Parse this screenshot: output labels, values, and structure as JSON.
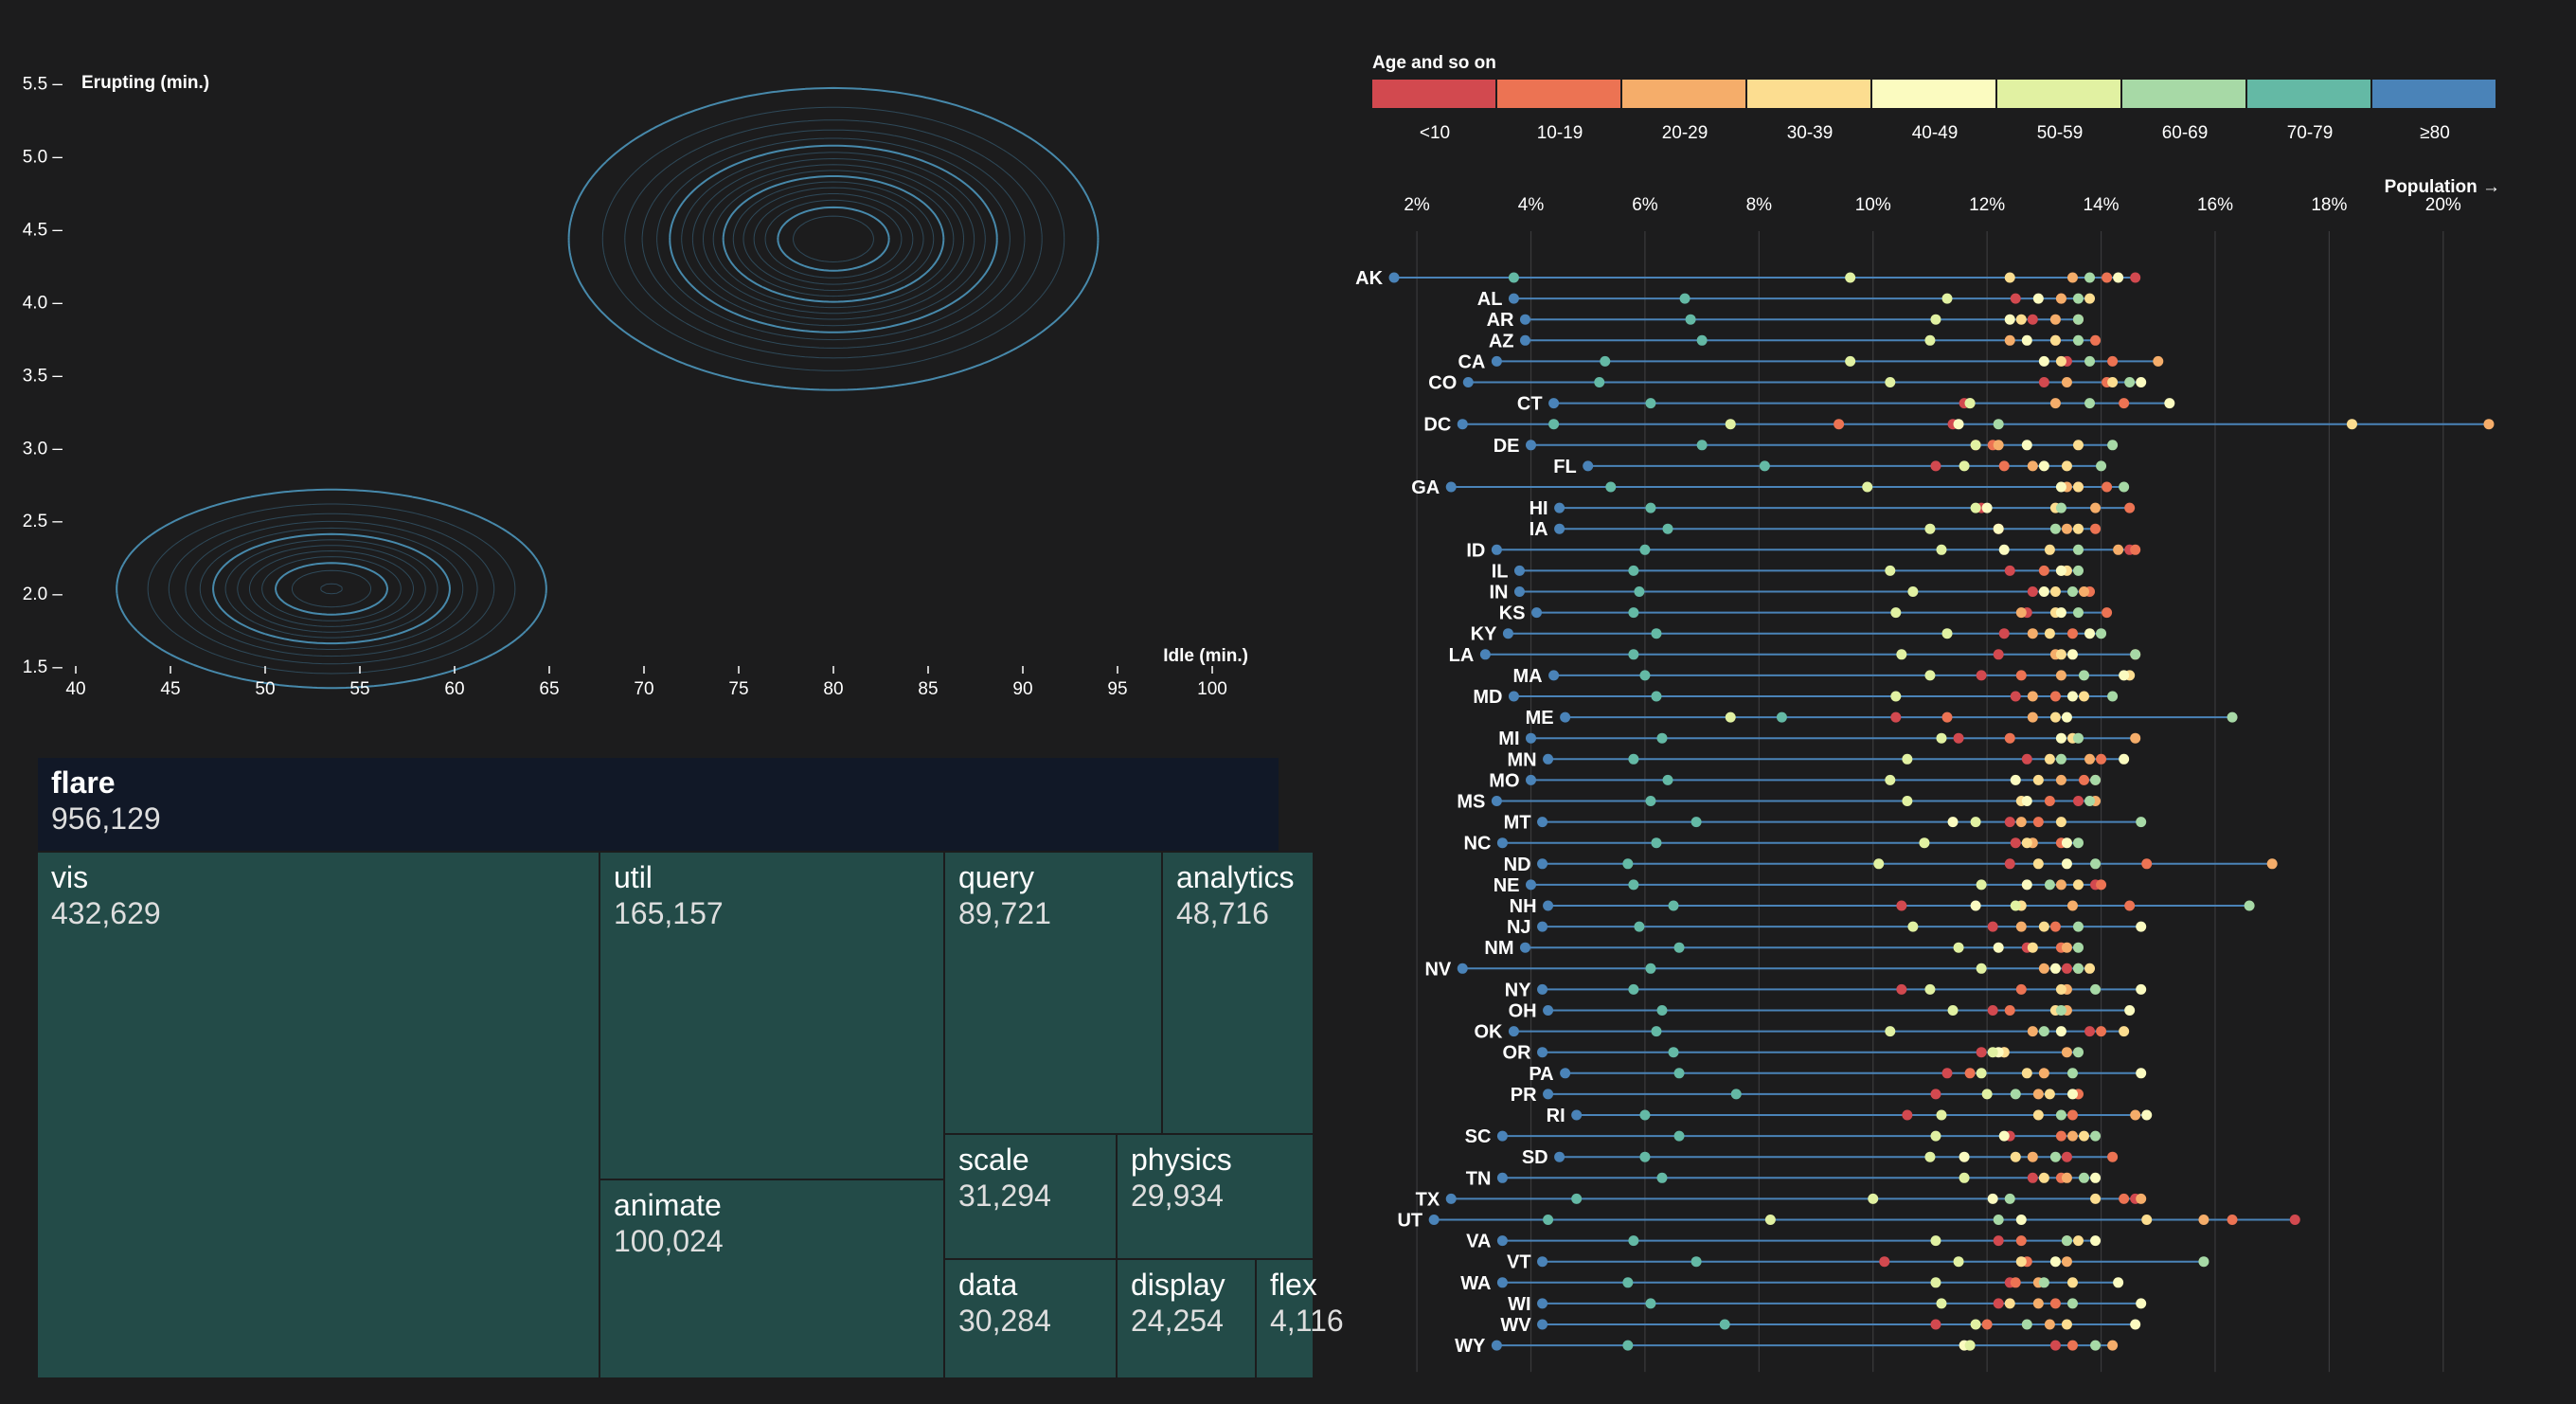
{
  "contour": {
    "xlabel": "Idle (min.)",
    "ylabel": "Erupting (min.)",
    "xticks": [
      40,
      45,
      50,
      55,
      60,
      65,
      70,
      75,
      80,
      85,
      90,
      95,
      100
    ],
    "yticks": [
      1.5,
      2.0,
      2.5,
      3.0,
      3.5,
      4.0,
      4.5,
      5.0,
      5.5
    ],
    "xdomain": [
      40,
      101
    ],
    "ydomain": [
      1.5,
      5.55
    ],
    "stroke": "#4a8fb3"
  },
  "treemap": {
    "root": {
      "name": "flare",
      "value": "956,129"
    },
    "nodes": [
      {
        "name": "vis",
        "value": "432,629"
      },
      {
        "name": "util",
        "value": "165,157"
      },
      {
        "name": "animate",
        "value": "100,024"
      },
      {
        "name": "query",
        "value": "89,721"
      },
      {
        "name": "analytics",
        "value": "48,716"
      },
      {
        "name": "scale",
        "value": "31,294"
      },
      {
        "name": "physics",
        "value": "29,934"
      },
      {
        "name": "data",
        "value": "30,284"
      },
      {
        "name": "display",
        "value": "24,254"
      },
      {
        "name": "flex",
        "value": "4,116"
      }
    ],
    "colors": {
      "root": "#111827",
      "leaf": "#234b48"
    }
  },
  "chart_data": {
    "type": "scatter",
    "title": "Age and so on",
    "xlabel": "Population →",
    "xlim": [
      1.5,
      21
    ],
    "xticks": [
      "2%",
      "4%",
      "6%",
      "8%",
      "10%",
      "12%",
      "14%",
      "16%",
      "18%",
      "20%"
    ],
    "legend": {
      "title": "Age and so on",
      "placement": "top",
      "categories": [
        "<10",
        "10-19",
        "20-29",
        "30-39",
        "40-49",
        "50-59",
        "60-69",
        "70-79",
        "≥80"
      ],
      "colors": [
        "#d2494f",
        "#ec7353",
        "#f5ad6a",
        "#fcdd90",
        "#fbfbc0",
        "#e1f1a2",
        "#a7d9a6",
        "#64b9a5",
        "#4a83b8"
      ]
    },
    "line_color": "#4a83b8",
    "rows": [
      {
        "state": "AK",
        "values": [
          14.6,
          14.1,
          13.5,
          12.4,
          14.3,
          9.6,
          13.8,
          3.7,
          1.6
        ]
      },
      {
        "state": "AL",
        "values": [
          12.5,
          13.3,
          13.3,
          13.8,
          12.9,
          11.3,
          13.6,
          6.7,
          3.7
        ]
      },
      {
        "state": "AR",
        "values": [
          12.8,
          13.6,
          13.2,
          12.6,
          12.4,
          11.1,
          13.6,
          6.8,
          3.9
        ]
      },
      {
        "state": "AZ",
        "values": [
          13.2,
          13.9,
          12.4,
          13.2,
          12.7,
          11.0,
          13.6,
          7.0,
          3.9
        ]
      },
      {
        "state": "CA",
        "values": [
          13.4,
          14.2,
          15.0,
          13.3,
          13.0,
          9.6,
          13.8,
          5.3,
          3.4
        ]
      },
      {
        "state": "CO",
        "values": [
          13.0,
          14.1,
          13.4,
          14.2,
          14.7,
          10.3,
          14.5,
          5.2,
          2.9
        ]
      },
      {
        "state": "CT",
        "values": [
          11.6,
          14.4,
          13.2,
          11.7,
          15.2,
          11.7,
          13.8,
          6.1,
          4.4
        ]
      },
      {
        "state": "DC",
        "values": [
          11.4,
          9.4,
          20.8,
          18.4,
          11.5,
          7.5,
          12.2,
          4.4,
          2.8
        ]
      },
      {
        "state": "DE",
        "values": [
          11.8,
          12.1,
          12.2,
          13.6,
          12.7,
          11.8,
          14.2,
          7.0,
          4.0
        ]
      },
      {
        "state": "FL",
        "values": [
          11.1,
          12.3,
          12.8,
          13.4,
          13.0,
          11.6,
          14.0,
          8.1,
          5.0
        ]
      },
      {
        "state": "GA",
        "values": [
          13.6,
          14.1,
          13.4,
          13.6,
          13.3,
          9.9,
          14.4,
          5.4,
          2.6
        ]
      },
      {
        "state": "HI",
        "values": [
          11.9,
          14.5,
          13.9,
          13.2,
          12.0,
          11.8,
          13.3,
          6.1,
          4.5
        ]
      },
      {
        "state": "IA",
        "values": [
          12.2,
          13.9,
          13.4,
          13.6,
          12.2,
          11.0,
          13.2,
          6.4,
          4.5
        ]
      },
      {
        "state": "ID",
        "values": [
          14.5,
          14.6,
          14.3,
          13.1,
          12.3,
          11.2,
          13.6,
          6.0,
          3.4
        ]
      },
      {
        "state": "IL",
        "values": [
          12.4,
          13.0,
          13.3,
          13.4,
          13.3,
          10.3,
          13.6,
          5.8,
          3.8
        ]
      },
      {
        "state": "IN",
        "values": [
          12.8,
          13.8,
          13.7,
          13.2,
          13.0,
          10.7,
          13.5,
          5.9,
          3.8
        ]
      },
      {
        "state": "KS",
        "values": [
          12.7,
          14.1,
          12.6,
          13.2,
          13.3,
          10.4,
          13.6,
          5.8,
          4.1
        ]
      },
      {
        "state": "KY",
        "values": [
          12.3,
          13.5,
          12.8,
          13.1,
          13.8,
          11.3,
          14.0,
          6.2,
          3.6
        ]
      },
      {
        "state": "LA",
        "values": [
          12.2,
          14.6,
          13.2,
          13.3,
          13.5,
          10.5,
          14.6,
          5.8,
          3.2
        ]
      },
      {
        "state": "MA",
        "values": [
          11.9,
          12.6,
          13.3,
          14.5,
          14.4,
          11.0,
          13.7,
          6.0,
          4.4
        ]
      },
      {
        "state": "MD",
        "values": [
          12.5,
          13.2,
          12.8,
          13.7,
          13.5,
          10.4,
          14.2,
          6.2,
          3.7
        ]
      },
      {
        "state": "ME",
        "values": [
          10.4,
          11.3,
          12.8,
          13.2,
          13.4,
          7.5,
          16.3,
          8.4,
          4.6
        ]
      },
      {
        "state": "MI",
        "values": [
          11.5,
          12.4,
          14.6,
          13.5,
          13.3,
          11.2,
          13.6,
          6.3,
          4.0
        ]
      },
      {
        "state": "MN",
        "values": [
          12.7,
          14.0,
          13.8,
          13.1,
          14.4,
          10.6,
          13.3,
          5.8,
          4.3
        ]
      },
      {
        "state": "MO",
        "values": [
          13.9,
          13.7,
          13.3,
          12.9,
          12.5,
          10.3,
          13.9,
          6.4,
          4.0
        ]
      },
      {
        "state": "MS",
        "values": [
          13.6,
          13.1,
          13.9,
          12.6,
          12.7,
          10.6,
          13.8,
          6.1,
          3.4
        ]
      },
      {
        "state": "MT",
        "values": [
          12.4,
          12.9,
          12.6,
          13.3,
          11.4,
          11.8,
          14.7,
          6.9,
          4.2
        ]
      },
      {
        "state": "NC",
        "values": [
          12.5,
          13.3,
          12.8,
          12.7,
          13.4,
          10.9,
          13.6,
          6.2,
          3.5
        ]
      },
      {
        "state": "ND",
        "values": [
          12.4,
          14.8,
          17.0,
          12.9,
          13.4,
          10.1,
          13.9,
          5.7,
          4.2
        ]
      },
      {
        "state": "NE",
        "values": [
          13.9,
          14.0,
          13.3,
          13.6,
          12.7,
          11.9,
          13.1,
          5.8,
          4.0
        ]
      },
      {
        "state": "NH",
        "values": [
          10.5,
          14.5,
          13.5,
          12.6,
          11.8,
          12.5,
          16.6,
          6.5,
          4.3
        ]
      },
      {
        "state": "NJ",
        "values": [
          12.1,
          13.2,
          12.6,
          13.0,
          14.7,
          10.7,
          13.6,
          5.9,
          4.2
        ]
      },
      {
        "state": "NM",
        "values": [
          12.7,
          13.3,
          13.4,
          12.8,
          12.2,
          11.5,
          13.6,
          6.6,
          3.9
        ]
      },
      {
        "state": "NV",
        "values": [
          13.4,
          13.6,
          13.0,
          13.8,
          13.2,
          11.9,
          13.6,
          6.1,
          2.8
        ]
      },
      {
        "state": "NY",
        "values": [
          10.5,
          12.6,
          13.4,
          13.3,
          14.7,
          11.0,
          13.9,
          5.8,
          4.2
        ]
      },
      {
        "state": "OH",
        "values": [
          12.1,
          12.4,
          13.4,
          13.2,
          14.5,
          11.4,
          13.3,
          6.3,
          4.3
        ]
      },
      {
        "state": "OK",
        "values": [
          13.8,
          14.0,
          12.8,
          14.4,
          13.3,
          10.3,
          13.0,
          6.2,
          3.7
        ]
      },
      {
        "state": "OR",
        "values": [
          11.9,
          12.3,
          13.4,
          12.3,
          12.2,
          12.1,
          13.6,
          6.5,
          4.2
        ]
      },
      {
        "state": "PA",
        "values": [
          11.3,
          11.7,
          13.0,
          12.7,
          14.7,
          11.9,
          13.5,
          6.6,
          4.6
        ]
      },
      {
        "state": "PR",
        "values": [
          11.1,
          13.6,
          12.9,
          13.1,
          13.5,
          12.0,
          12.5,
          7.6,
          4.3
        ]
      },
      {
        "state": "RI",
        "values": [
          10.6,
          13.5,
          14.6,
          12.9,
          14.8,
          11.2,
          13.3,
          6.0,
          4.8
        ]
      },
      {
        "state": "SC",
        "values": [
          12.4,
          13.3,
          13.5,
          13.7,
          12.3,
          11.1,
          13.9,
          6.6,
          3.5
        ]
      },
      {
        "state": "SD",
        "values": [
          13.4,
          14.2,
          12.8,
          12.5,
          11.6,
          11.0,
          13.2,
          6.0,
          4.5
        ]
      },
      {
        "state": "TN",
        "values": [
          12.8,
          13.3,
          13.4,
          13.0,
          13.9,
          11.6,
          13.7,
          6.3,
          3.5
        ]
      },
      {
        "state": "TX",
        "values": [
          14.6,
          14.4,
          14.7,
          13.9,
          12.1,
          10.0,
          12.4,
          4.8,
          2.6
        ]
      },
      {
        "state": "UT",
        "values": [
          17.4,
          16.3,
          15.8,
          14.8,
          12.6,
          8.2,
          12.2,
          4.3,
          2.3
        ]
      },
      {
        "state": "VA",
        "values": [
          12.2,
          12.6,
          13.4,
          13.6,
          13.9,
          11.1,
          13.4,
          5.8,
          3.5
        ]
      },
      {
        "state": "VT",
        "values": [
          10.2,
          12.7,
          13.4,
          12.6,
          13.2,
          11.5,
          15.8,
          6.9,
          4.2
        ]
      },
      {
        "state": "WA",
        "values": [
          12.4,
          12.5,
          12.9,
          13.5,
          14.3,
          11.1,
          13.0,
          5.7,
          3.5
        ]
      },
      {
        "state": "WI",
        "values": [
          12.2,
          13.2,
          12.9,
          12.4,
          14.7,
          11.2,
          13.5,
          6.1,
          4.2
        ]
      },
      {
        "state": "WV",
        "values": [
          11.1,
          12.0,
          13.1,
          13.4,
          14.6,
          11.8,
          12.7,
          7.4,
          4.2
        ]
      },
      {
        "state": "WY",
        "values": [
          13.2,
          13.5,
          14.2,
          11.7,
          11.6,
          11.7,
          13.9,
          5.7,
          3.4
        ]
      }
    ]
  }
}
